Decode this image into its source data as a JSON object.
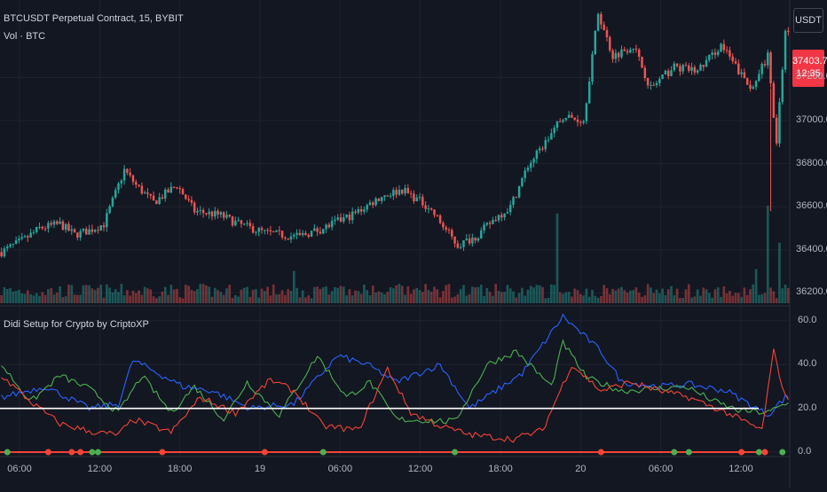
{
  "header": {
    "symbol_line": "BTCUSDT Perpetual Contract, 15, BYBIT",
    "volume_line": "Vol · BTC",
    "currency_button": "USDT",
    "last_price": "37403.7",
    "countdown": "12:35"
  },
  "indicator": {
    "title": "Didi Setup for Crypto by CriptoXP"
  },
  "colors": {
    "background": "#131722",
    "up": "#26a69a",
    "down": "#ef5350",
    "blue_line": "#2962ff",
    "green_line": "#4caf50",
    "red_line": "#f44336",
    "threshold_line": "#ffffff",
    "grid": "#1e222d"
  },
  "chart_data": [
    {
      "type": "candlestick",
      "x_ticks": [
        "06:00",
        "12:00",
        "18:00",
        "19",
        "06:00",
        "12:00",
        "18:00",
        "20",
        "06:00",
        "12:00"
      ],
      "y_ticks": [
        "37200.0",
        "37000.0",
        "36800.0",
        "36600.0",
        "36400.0",
        "36200.0"
      ],
      "ylim": [
        36140,
        37560
      ],
      "last_value": 37403.7,
      "close_path": [
        [
          0,
          36390
        ],
        [
          8,
          36450
        ],
        [
          13,
          36500
        ],
        [
          20,
          36520
        ],
        [
          25,
          36470
        ],
        [
          30,
          36490
        ],
        [
          35,
          36520
        ],
        [
          42,
          36770
        ],
        [
          46,
          36700
        ],
        [
          52,
          36620
        ],
        [
          60,
          36700
        ],
        [
          66,
          36580
        ],
        [
          75,
          36560
        ],
        [
          81,
          36520
        ],
        [
          90,
          36480
        ],
        [
          101,
          36460
        ],
        [
          110,
          36500
        ],
        [
          121,
          36570
        ],
        [
          130,
          36650
        ],
        [
          137,
          36680
        ],
        [
          146,
          36600
        ],
        [
          156,
          36420
        ],
        [
          163,
          36470
        ],
        [
          169,
          36550
        ],
        [
          174,
          36600
        ],
        [
          180,
          36790
        ],
        [
          185,
          36880
        ],
        [
          192,
          37020
        ],
        [
          199,
          37000
        ],
        [
          204,
          37500
        ],
        [
          209,
          37300
        ],
        [
          216,
          37350
        ],
        [
          222,
          37150
        ],
        [
          230,
          37250
        ],
        [
          238,
          37230
        ],
        [
          246,
          37350
        ],
        [
          251,
          37250
        ],
        [
          256,
          37150
        ],
        [
          262,
          37300
        ],
        [
          265,
          36900
        ],
        [
          268,
          37403.7
        ]
      ],
      "volume_ylim": [
        0,
        1
      ],
      "volume_spikes": [
        [
          190,
          0.92
        ],
        [
          262,
          1.0
        ],
        [
          266,
          0.62
        ],
        [
          258,
          0.35
        ],
        [
          100,
          0.33
        ]
      ]
    },
    {
      "type": "line",
      "title": "Didi Setup for Crypto by CriptoXP",
      "y_ticks": [
        "60.0",
        "40.0",
        "20.0",
        "0.0"
      ],
      "ylim": [
        -2,
        64
      ],
      "threshold": 20,
      "series": [
        {
          "color": "#2962ff",
          "values": [
            [
              0,
              25
            ],
            [
              15,
              30
            ],
            [
              30,
              20
            ],
            [
              40,
              22
            ],
            [
              45,
              42
            ],
            [
              55,
              35
            ],
            [
              62,
              30
            ],
            [
              72,
              28
            ],
            [
              85,
              20
            ],
            [
              100,
              22
            ],
            [
              115,
              44
            ],
            [
              125,
              40
            ],
            [
              135,
              32
            ],
            [
              150,
              40
            ],
            [
              160,
              20
            ],
            [
              178,
              36
            ],
            [
              192,
              62
            ],
            [
              205,
              46
            ],
            [
              212,
              32
            ],
            [
              225,
              30
            ],
            [
              235,
              31
            ],
            [
              248,
              28
            ],
            [
              262,
              17
            ],
            [
              268,
              25
            ]
          ]
        },
        {
          "color": "#4caf50",
          "values": [
            [
              0,
              40
            ],
            [
              10,
              23
            ],
            [
              20,
              35
            ],
            [
              30,
              29
            ],
            [
              40,
              18
            ],
            [
              48,
              35
            ],
            [
              58,
              18
            ],
            [
              66,
              30
            ],
            [
              76,
              15
            ],
            [
              84,
              32
            ],
            [
              95,
              17
            ],
            [
              108,
              44
            ],
            [
              118,
              25
            ],
            [
              126,
              32
            ],
            [
              135,
              15
            ],
            [
              155,
              14
            ],
            [
              166,
              40
            ],
            [
              176,
              46
            ],
            [
              188,
              30
            ],
            [
              192,
              50
            ],
            [
              200,
              34
            ],
            [
              212,
              28
            ],
            [
              224,
              29
            ],
            [
              234,
              30
            ],
            [
              244,
              23
            ],
            [
              252,
              19
            ],
            [
              262,
              18
            ],
            [
              268,
              22
            ]
          ]
        },
        {
          "color": "#f44336",
          "values": [
            [
              0,
              35
            ],
            [
              10,
              23
            ],
            [
              20,
              13
            ],
            [
              32,
              9
            ],
            [
              40,
              8
            ],
            [
              45,
              15
            ],
            [
              58,
              9
            ],
            [
              68,
              25
            ],
            [
              80,
              18
            ],
            [
              92,
              33
            ],
            [
              100,
              28
            ],
            [
              110,
              12
            ],
            [
              122,
              10
            ],
            [
              132,
              38
            ],
            [
              140,
              18
            ],
            [
              150,
              12
            ],
            [
              160,
              8
            ],
            [
              175,
              6
            ],
            [
              185,
              10
            ],
            [
              195,
              40
            ],
            [
              205,
              28
            ],
            [
              215,
              32
            ],
            [
              225,
              28
            ],
            [
              235,
              25
            ],
            [
              248,
              18
            ],
            [
              260,
              10
            ],
            [
              264,
              46
            ],
            [
              268,
              25
            ]
          ]
        }
      ],
      "dot_baseline": 0,
      "dots": [
        {
          "x": 2,
          "color": "#4caf50"
        },
        {
          "x": 16,
          "color": "#f44336"
        },
        {
          "x": 24,
          "color": "#f44336"
        },
        {
          "x": 27,
          "color": "#f44336"
        },
        {
          "x": 31,
          "color": "#4caf50"
        },
        {
          "x": 33,
          "color": "#4caf50"
        },
        {
          "x": 55,
          "color": "#f44336"
        },
        {
          "x": 90,
          "color": "#f44336"
        },
        {
          "x": 110,
          "color": "#4caf50"
        },
        {
          "x": 155,
          "color": "#4caf50"
        },
        {
          "x": 205,
          "color": "#f44336"
        },
        {
          "x": 230,
          "color": "#4caf50"
        },
        {
          "x": 235,
          "color": "#4caf50"
        },
        {
          "x": 253,
          "color": "#f44336"
        },
        {
          "x": 259,
          "color": "#4caf50"
        },
        {
          "x": 261,
          "color": "#f44336"
        },
        {
          "x": 267,
          "color": "#4caf50"
        }
      ]
    }
  ]
}
